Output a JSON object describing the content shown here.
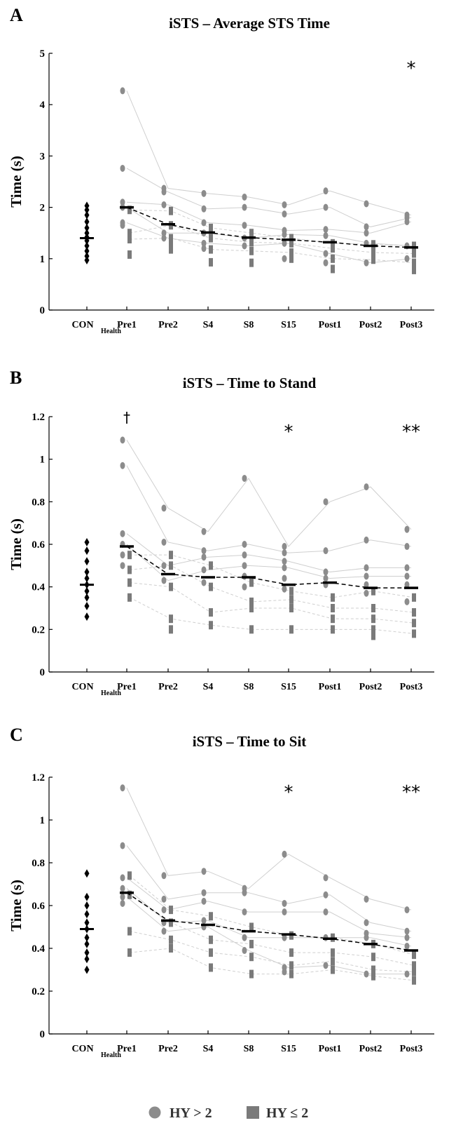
{
  "chart_data": [
    {
      "type": "scatter",
      "panel": "A",
      "title": "iSTS – Average STS Time",
      "ylabel": "Time (s)",
      "ylim": [
        0,
        5
      ],
      "yticks": [
        0,
        1,
        2,
        3,
        4,
        5
      ],
      "categories": [
        "CON",
        "Pre1",
        "Pre2",
        "S4",
        "S8",
        "S15",
        "Post1",
        "Post2",
        "Post3"
      ],
      "category_subscripts": [
        "Health",
        "",
        "",
        "",
        "",
        "",
        "",
        "",
        ""
      ],
      "control": [
        2.03,
        1.95,
        1.85,
        1.72,
        1.6,
        1.5,
        1.42,
        1.35,
        1.25,
        1.15,
        1.05,
        0.97
      ],
      "control_mean": 1.4,
      "hy_gt2": [
        [
          4.27,
          2.76,
          2.1,
          2.0,
          1.7,
          1.65
        ],
        [
          2.37,
          2.3,
          2.05,
          1.5,
          1.4
        ],
        [
          2.27,
          1.97,
          1.7,
          1.5,
          1.3,
          1.2
        ],
        [
          2.2,
          2.0,
          1.65,
          1.4,
          1.25
        ],
        [
          2.05,
          1.87,
          1.55,
          1.47,
          1.3,
          1.0
        ],
        [
          2.32,
          2.0,
          1.57,
          1.45,
          1.1,
          0.92
        ],
        [
          2.07,
          1.62,
          1.5,
          1.3,
          0.92
        ],
        [
          1.85,
          1.8,
          1.72,
          1.25,
          1.0
        ]
      ],
      "hy_le2": [
        [
          1.95,
          1.5,
          1.38,
          1.08
        ],
        [
          1.93,
          1.65,
          1.4,
          1.25,
          1.18
        ],
        [
          1.6,
          1.4,
          1.18,
          0.93
        ],
        [
          1.5,
          1.32,
          1.15,
          0.92
        ],
        [
          1.4,
          1.3,
          1.12,
          1.0
        ],
        [
          1.3,
          1.2,
          1.0,
          0.8
        ],
        [
          1.28,
          1.12,
          0.98
        ],
        [
          1.25,
          1.1,
          0.92,
          0.78
        ]
      ],
      "means": [
        2.0,
        1.67,
        1.51,
        1.41,
        1.37,
        1.32,
        1.25,
        1.22
      ],
      "significance": [
        {
          "category": "Post3",
          "label": "*"
        }
      ]
    },
    {
      "type": "scatter",
      "panel": "B",
      "title": "iSTS – Time to Stand",
      "ylabel": "Time (s)",
      "ylim": [
        0,
        1.2
      ],
      "yticks": [
        0,
        0.2,
        0.4,
        0.6,
        0.8,
        1,
        1.2
      ],
      "categories": [
        "CON",
        "Pre1",
        "Pre2",
        "S4",
        "S8",
        "S15",
        "Post1",
        "Post2",
        "Post3"
      ],
      "category_subscripts": [
        "Health",
        "",
        "",
        "",
        "",
        "",
        "",
        "",
        ""
      ],
      "control": [
        0.61,
        0.57,
        0.52,
        0.47,
        0.44,
        0.41,
        0.38,
        0.35,
        0.31,
        0.26
      ],
      "control_mean": 0.41,
      "hy_gt2": [
        [
          1.09,
          0.97,
          0.65,
          0.6,
          0.55,
          0.5
        ],
        [
          0.77,
          0.61,
          0.5,
          0.43
        ],
        [
          0.66,
          0.57,
          0.54,
          0.48,
          0.42
        ],
        [
          0.91,
          0.6,
          0.55,
          0.5,
          0.45,
          0.4
        ],
        [
          0.59,
          0.56,
          0.52,
          0.49,
          0.44,
          0.39
        ],
        [
          0.8,
          0.57,
          0.47,
          0.44,
          0.41
        ],
        [
          0.87,
          0.62,
          0.49,
          0.45,
          0.41,
          0.37
        ],
        [
          0.67,
          0.59,
          0.49,
          0.45,
          0.41,
          0.33
        ]
      ],
      "hy_le2": [
        [
          0.55,
          0.48,
          0.42,
          0.35
        ],
        [
          0.55,
          0.5,
          0.4,
          0.25,
          0.2
        ],
        [
          0.5,
          0.4,
          0.28,
          0.22
        ],
        [
          0.42,
          0.33,
          0.3,
          0.2
        ],
        [
          0.38,
          0.34,
          0.3,
          0.2
        ],
        [
          0.35,
          0.3,
          0.25,
          0.2
        ],
        [
          0.38,
          0.3,
          0.25,
          0.2,
          0.17
        ],
        [
          0.35,
          0.28,
          0.23,
          0.18
        ]
      ],
      "means": [
        0.59,
        0.46,
        0.445,
        0.445,
        0.41,
        0.42,
        0.395,
        0.395
      ],
      "significance": [
        {
          "category": "Pre1",
          "label": "†"
        },
        {
          "category": "S15",
          "label": "*"
        },
        {
          "category": "Post3",
          "label": "**"
        }
      ]
    },
    {
      "type": "scatter",
      "panel": "C",
      "title": "iSTS – Time to Sit",
      "ylabel": "Time (s)",
      "ylim": [
        0,
        1.2
      ],
      "yticks": [
        0,
        0.2,
        0.4,
        0.6,
        0.8,
        1,
        1.2
      ],
      "categories": [
        "CON",
        "Pre1",
        "Pre2",
        "S4",
        "S8",
        "S15",
        "Post1",
        "Post2",
        "Post3"
      ],
      "category_subscripts": [
        "Health",
        "",
        "",
        "",
        "",
        "",
        "",
        "",
        ""
      ],
      "control": [
        0.75,
        0.64,
        0.6,
        0.56,
        0.52,
        0.49,
        0.45,
        0.42,
        0.38,
        0.35,
        0.3
      ],
      "control_mean": 0.49,
      "hy_gt2": [
        [
          1.15,
          0.88,
          0.73,
          0.68,
          0.64,
          0.61
        ],
        [
          0.74,
          0.63,
          0.58,
          0.52,
          0.48
        ],
        [
          0.76,
          0.66,
          0.62,
          0.53,
          0.5
        ],
        [
          0.68,
          0.66,
          0.57,
          0.45,
          0.39
        ],
        [
          0.84,
          0.61,
          0.57,
          0.45,
          0.31,
          0.29
        ],
        [
          0.73,
          0.65,
          0.57,
          0.45,
          0.32
        ],
        [
          0.63,
          0.52,
          0.47,
          0.45,
          0.28
        ],
        [
          0.58,
          0.48,
          0.45,
          0.41,
          0.28
        ]
      ],
      "hy_le2": [
        [
          0.74,
          0.65,
          0.48,
          0.38
        ],
        [
          0.58,
          0.52,
          0.44,
          0.4
        ],
        [
          0.55,
          0.44,
          0.38,
          0.31
        ],
        [
          0.5,
          0.42,
          0.36,
          0.28
        ],
        [
          0.46,
          0.38,
          0.32,
          0.28
        ],
        [
          0.45,
          0.38,
          0.34,
          0.3
        ],
        [
          0.42,
          0.36,
          0.3,
          0.27
        ],
        [
          0.37,
          0.32,
          0.29,
          0.25
        ]
      ],
      "means": [
        0.66,
        0.53,
        0.51,
        0.48,
        0.465,
        0.445,
        0.42,
        0.39
      ],
      "significance": [
        {
          "category": "S15",
          "label": "*"
        },
        {
          "category": "Post3",
          "label": "**"
        }
      ]
    }
  ],
  "legend": {
    "items": [
      {
        "label": "HY > 2",
        "marker": "circle",
        "color": "#8c8c8c"
      },
      {
        "label": "HY ≤ 2",
        "marker": "square",
        "color": "#7a7a7a"
      }
    ],
    "placement": "bottom-center"
  },
  "colors": {
    "hy_gt2": "#8c8c8c",
    "hy_le2": "#7a7a7a",
    "control": "#000000",
    "mean": "#000000",
    "connector": "#cfcfcf"
  }
}
